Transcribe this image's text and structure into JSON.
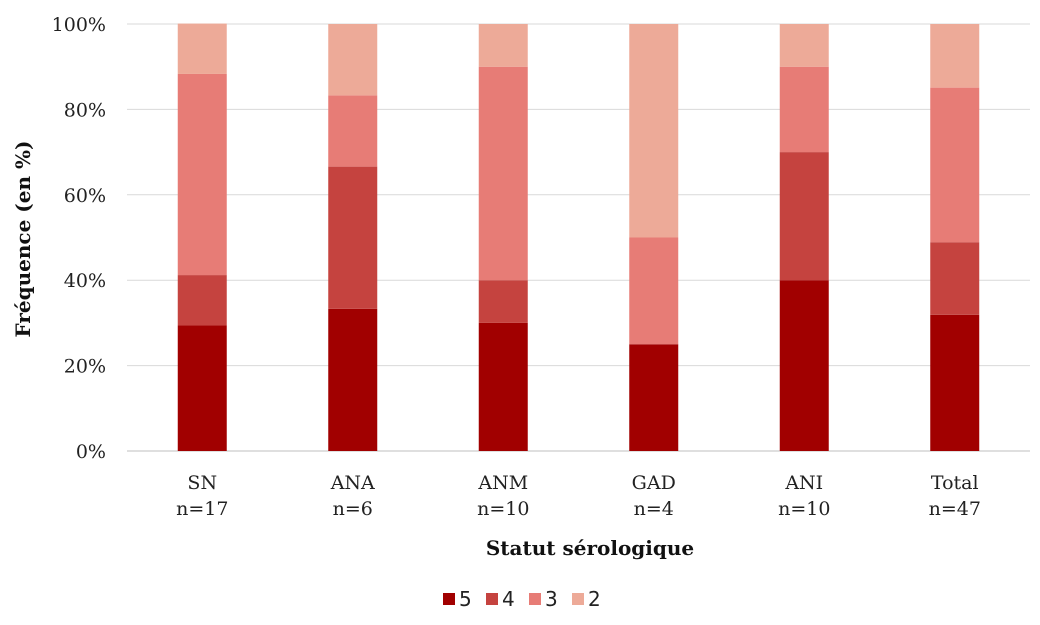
{
  "chart_data": {
    "type": "bar",
    "stacked": true,
    "categories": [
      "SN",
      "ANA",
      "ANM",
      "GAD",
      "ANI",
      "Total"
    ],
    "category_counts": [
      "n=17",
      "n=6",
      "n=10",
      "n=4",
      "n=10",
      "n=47"
    ],
    "series": [
      {
        "name": "5",
        "color": "#a10000",
        "values": [
          29.4,
          33.3,
          30.0,
          25.0,
          40.0,
          31.9
        ]
      },
      {
        "name": "4",
        "color": "#c5433f",
        "values": [
          11.8,
          33.3,
          10.0,
          0.0,
          30.0,
          17.0
        ]
      },
      {
        "name": "3",
        "color": "#e77c76",
        "values": [
          47.1,
          16.7,
          50.0,
          25.0,
          20.0,
          36.2
        ]
      },
      {
        "name": "2",
        "color": "#edaa98",
        "values": [
          11.8,
          16.7,
          10.0,
          50.0,
          10.0,
          14.9
        ]
      }
    ],
    "title": "",
    "xlabel": "Statut sérologique",
    "ylabel": "Fréquence (en %)",
    "ylim": [
      0,
      100
    ],
    "yticks": [
      "0%",
      "20%",
      "40%",
      "60%",
      "80%",
      "100%"
    ],
    "grid": true,
    "legend": "bottom"
  }
}
